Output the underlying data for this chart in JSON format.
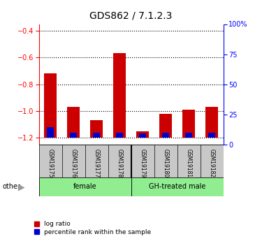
{
  "title": "GDS862 / 7.1.2.3",
  "samples": [
    "GSM19175",
    "GSM19176",
    "GSM19177",
    "GSM19178",
    "GSM19179",
    "GSM19180",
    "GSM19181",
    "GSM19182"
  ],
  "log_ratio": [
    -0.72,
    -0.97,
    -1.065,
    -0.565,
    -1.15,
    -1.02,
    -0.99,
    -0.97
  ],
  "percentile_rank": [
    10,
    5,
    5,
    5,
    4,
    5,
    5,
    5
  ],
  "ylim_left": [
    -1.25,
    -0.35
  ],
  "yticks_left": [
    -1.2,
    -1.0,
    -0.8,
    -0.6,
    -0.4
  ],
  "ylim_right": [
    0,
    100
  ],
  "yticks_right": [
    0,
    25,
    50,
    75,
    100
  ],
  "ytick_labels_right": [
    "0",
    "25",
    "50",
    "75",
    "100%"
  ],
  "bar_color_red": "#CC0000",
  "bar_color_blue": "#0000CC",
  "bar_width": 0.55,
  "label_area_color": "#C8C8C8",
  "group_area_color": "#90EE90",
  "other_label": "other",
  "legend_red": "log ratio",
  "legend_blue": "percentile rank within the sample",
  "title_fontsize": 10,
  "tick_fontsize": 7,
  "sample_fontsize": 5.5,
  "group_fontsize": 7,
  "legend_fontsize": 6.5,
  "female_indices": [
    0,
    1,
    2,
    3
  ],
  "gh_indices": [
    4,
    5,
    6,
    7
  ],
  "baseline": -1.2
}
